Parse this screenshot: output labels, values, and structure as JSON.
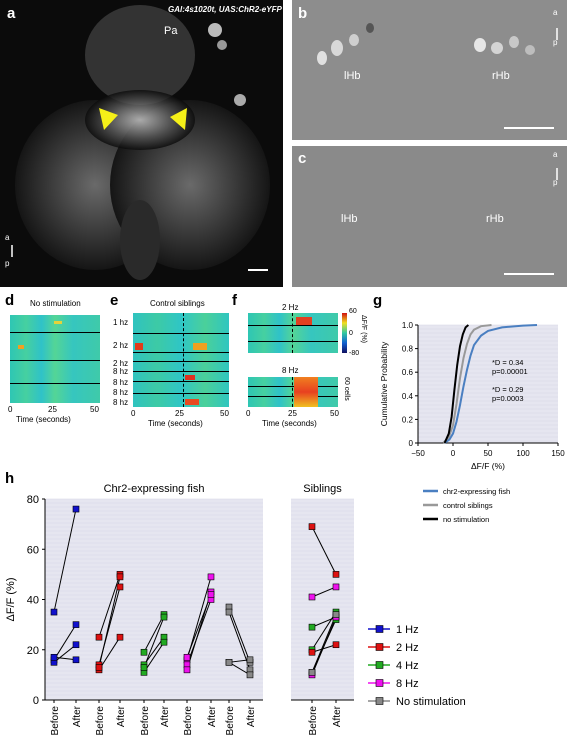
{
  "panels": {
    "a": {
      "label": "a",
      "genotype": "GAl:4s1020t, UAS:ChR2-eYFP",
      "region": "Pa",
      "orient_a": "a",
      "orient_p": "p"
    },
    "b": {
      "label": "b",
      "left": "lHb",
      "right": "rHb",
      "orient_a": "a",
      "orient_p": "p"
    },
    "c": {
      "label": "c",
      "left": "lHb",
      "right": "rHb",
      "orient_a": "a",
      "orient_p": "p"
    },
    "d": {
      "label": "d",
      "title": "No stimulation",
      "xlabel": "Time (seconds)",
      "ticks": [
        "0",
        "25",
        "50"
      ]
    },
    "e": {
      "label": "e",
      "title": "Control siblings",
      "rows": [
        "1 hz",
        "2 hz",
        "2 hz",
        "8 hz",
        "8 hz",
        "8 hz",
        "8 hz"
      ],
      "xlabel": "Time (seconds)",
      "ticks": [
        "0",
        "25",
        "50"
      ]
    },
    "f": {
      "label": "f",
      "top": "2 Hz",
      "bottom": "8 Hz",
      "xlabel": "Time (seconds)",
      "ticks": [
        "0",
        "25",
        "50"
      ],
      "cbar_label": "ΔF/F (%)",
      "cbar_ticks": [
        "60",
        "0",
        "-80"
      ],
      "scale": "60 cells"
    },
    "g": {
      "label": "g",
      "h_label": "h"
    }
  },
  "chart_data": [
    {
      "type": "line",
      "panel": "g",
      "xlabel": "ΔF/F (%)",
      "ylabel": "Cumulative Probability",
      "xlim": [
        -50,
        150
      ],
      "ylim": [
        0,
        1.0
      ],
      "xticks": [
        "−50",
        "0",
        "50",
        "100",
        "150"
      ],
      "yticks": [
        "0",
        "0.2",
        "0.4",
        "0.6",
        "0.8",
        "1.0"
      ],
      "annotations": [
        "*D = 0.34",
        "p=0.00001",
        "*D = 0.29",
        "p=0.0003"
      ],
      "series": [
        {
          "name": "chr2-expressing fish",
          "color": "#4a7fc1",
          "x": [
            -12,
            -5,
            0,
            5,
            10,
            15,
            20,
            25,
            30,
            40,
            50,
            70,
            100,
            120
          ],
          "y": [
            0,
            0.03,
            0.08,
            0.18,
            0.32,
            0.48,
            0.62,
            0.74,
            0.83,
            0.91,
            0.95,
            0.98,
            0.995,
            1.0
          ]
        },
        {
          "name": "control siblings",
          "color": "#999999",
          "x": [
            -14,
            -6,
            0,
            5,
            10,
            15,
            20,
            25,
            30,
            40,
            55
          ],
          "y": [
            0,
            0.05,
            0.15,
            0.33,
            0.55,
            0.72,
            0.84,
            0.92,
            0.96,
            0.99,
            1.0
          ]
        },
        {
          "name": "no stimulation",
          "color": "#000000",
          "x": [
            -12,
            -6,
            -2,
            2,
            6,
            10,
            14,
            18,
            22
          ],
          "y": [
            0,
            0.08,
            0.22,
            0.45,
            0.66,
            0.82,
            0.92,
            0.98,
            1.0
          ]
        }
      ]
    },
    {
      "type": "line",
      "panel": "h",
      "ylabel": "ΔF/F (%)",
      "ylim": [
        0,
        80
      ],
      "yticks": [
        "0",
        "20",
        "40",
        "60",
        "80"
      ],
      "group_titles": [
        "Chr2-expressing fish",
        "Siblings"
      ],
      "xticklabels": [
        "Before",
        "After"
      ],
      "series": [
        {
          "name": "1 Hz",
          "color": "#1111cc",
          "before": [
            35,
            16,
            15,
            17
          ],
          "after": [
            76,
            30,
            22,
            16
          ]
        },
        {
          "name": "2 Hz",
          "color": "#dd1111",
          "before": [
            25,
            14,
            12,
            13
          ],
          "after": [
            50,
            45,
            25,
            49
          ]
        },
        {
          "name": "4 Hz",
          "color": "#22aa22",
          "before": [
            19,
            14,
            11,
            13
          ],
          "after": [
            34,
            25,
            23,
            33
          ]
        },
        {
          "name": "8 Hz",
          "color": "#ee11ee",
          "before": [
            16,
            14,
            12,
            17
          ],
          "after": [
            49,
            40,
            43,
            42
          ]
        },
        {
          "name": "No stimulation",
          "color": "#888888",
          "before": [
            37,
            35,
            15,
            15
          ],
          "after": [
            15,
            12,
            10,
            16
          ]
        }
      ],
      "siblings": [
        {
          "before": 69,
          "after": 50,
          "color": "#dd1111"
        },
        {
          "before": 41,
          "after": 45,
          "color": "#ee11ee"
        },
        {
          "before": 29,
          "after": 33,
          "color": "#22aa22"
        },
        {
          "before": 20,
          "after": 35,
          "color": "#22aa22"
        },
        {
          "before": 19,
          "after": 22,
          "color": "#dd1111"
        },
        {
          "before": 11,
          "after": 32,
          "color": "#22aa22"
        },
        {
          "before": 10,
          "after": 33,
          "color": "#ee11ee"
        },
        {
          "before": 11,
          "after": 34,
          "color": "#888888"
        }
      ]
    }
  ]
}
